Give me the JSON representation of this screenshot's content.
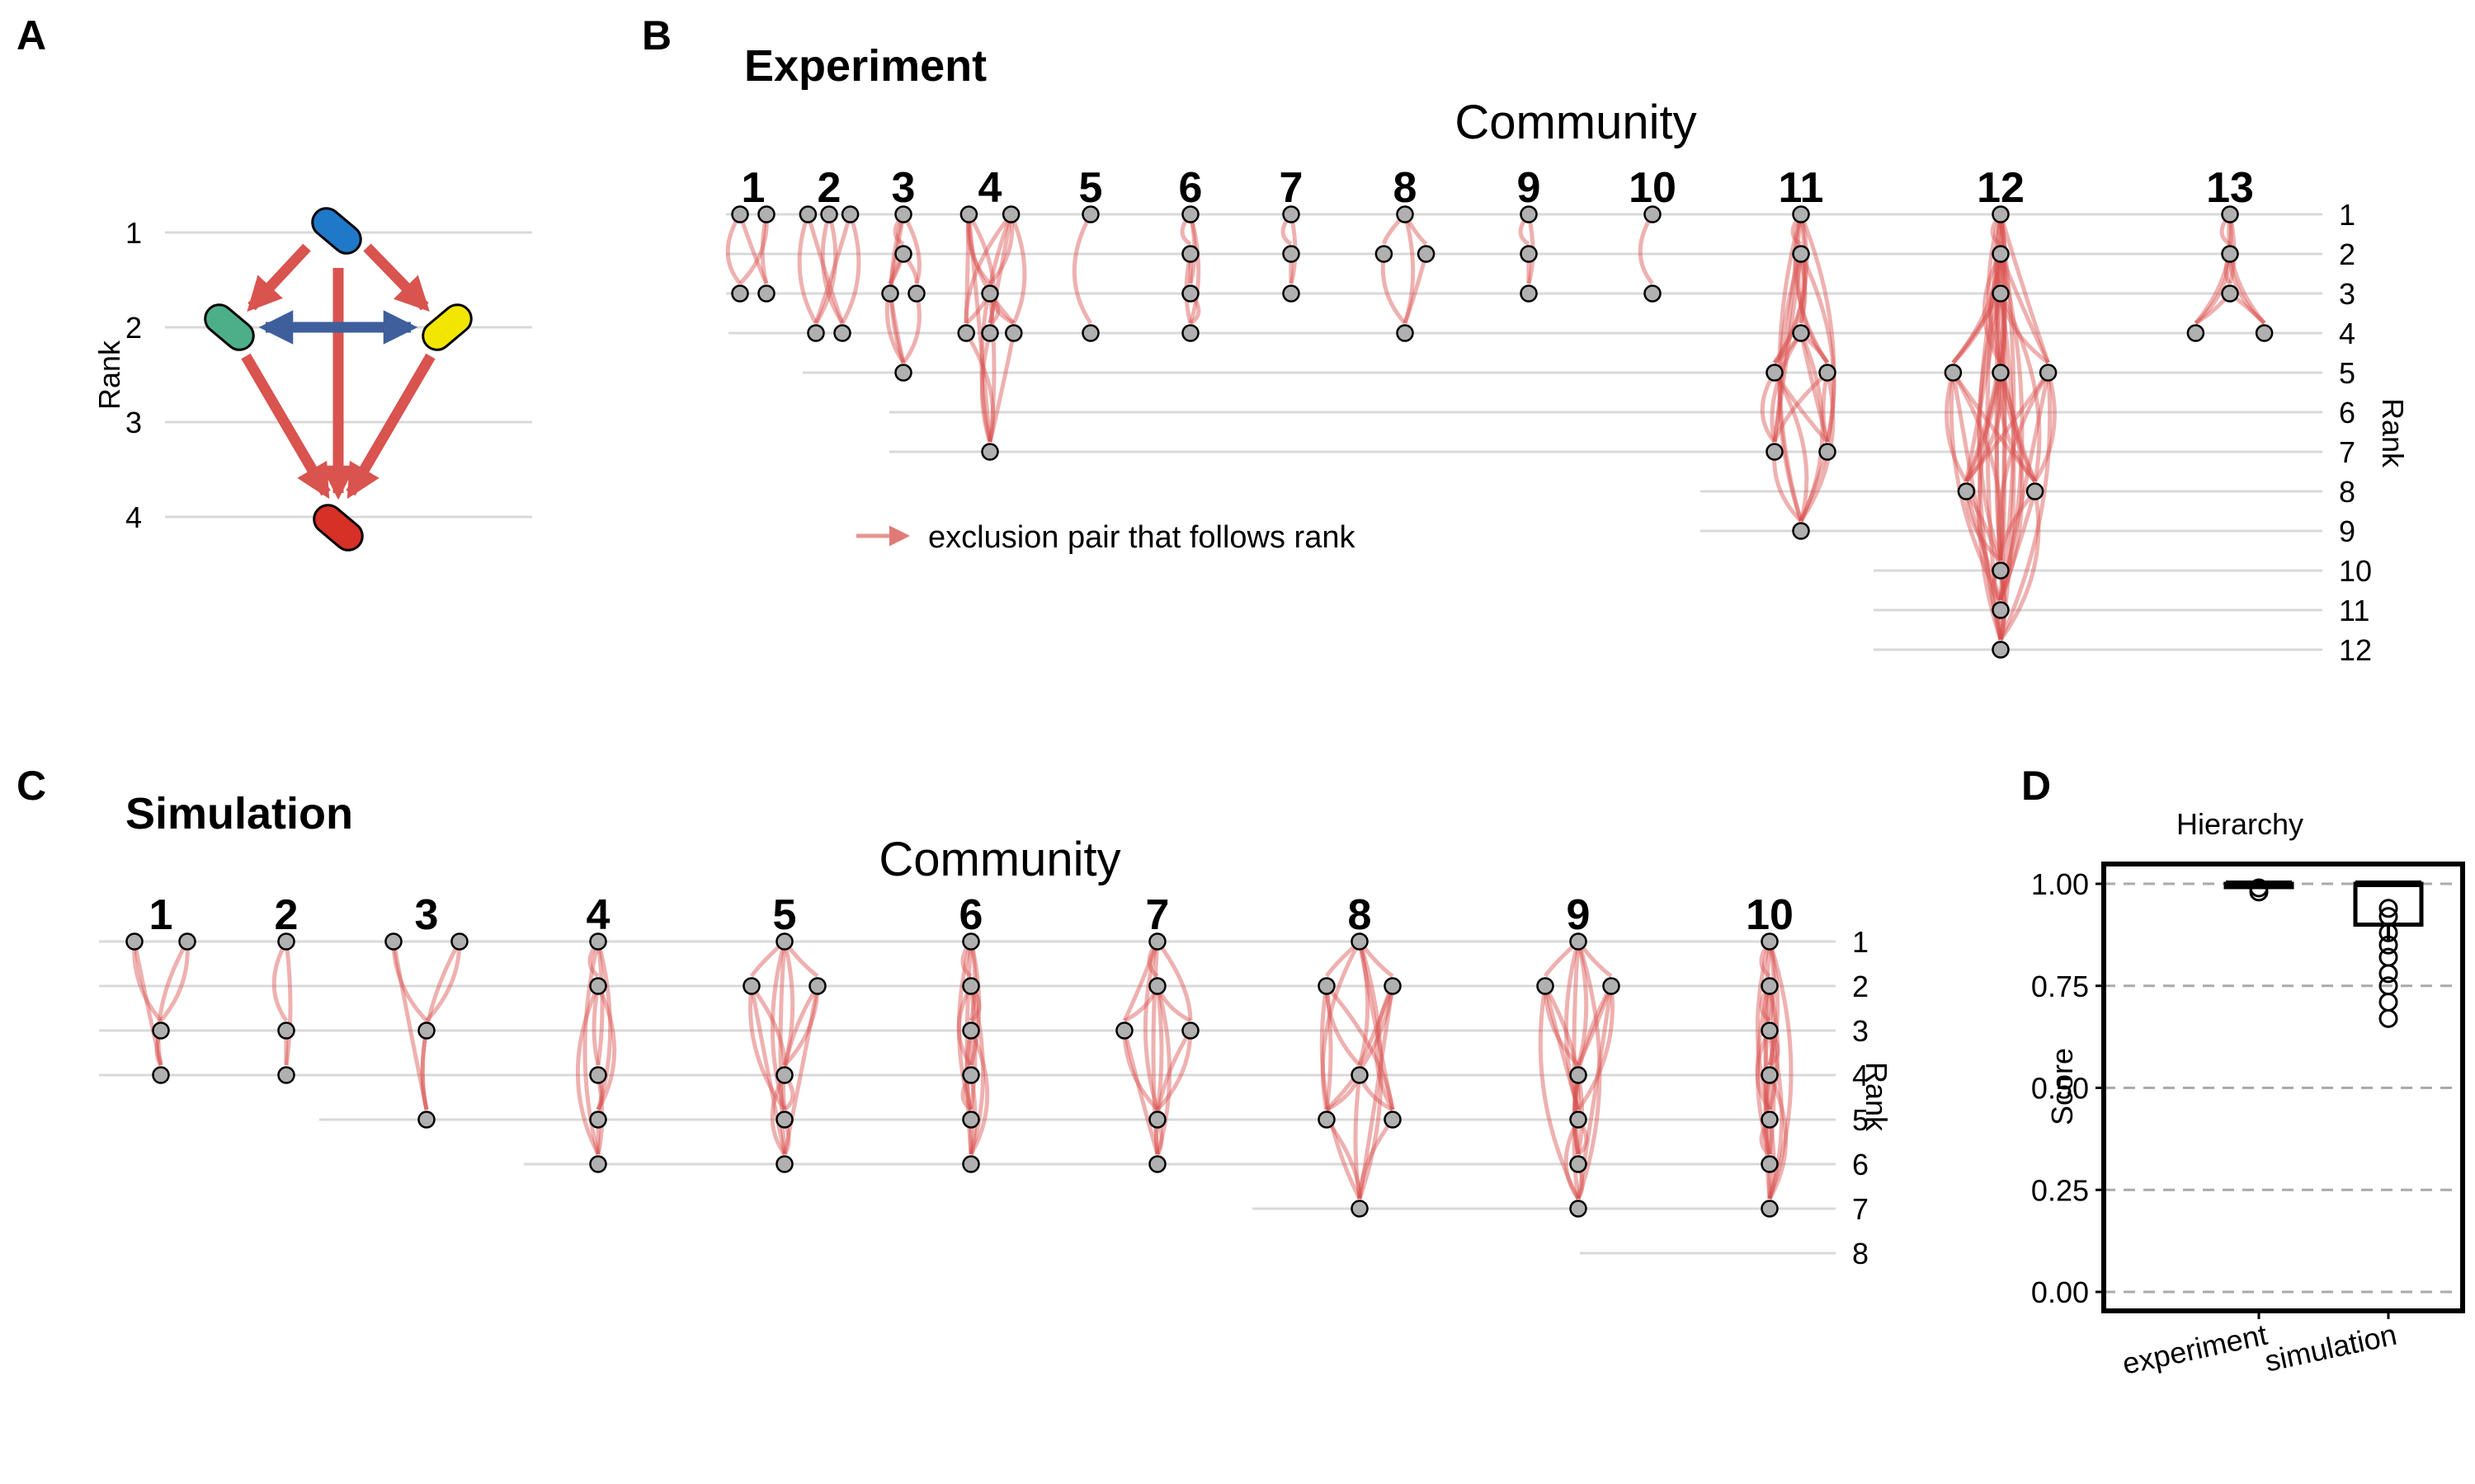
{
  "panels": {
    "A": {
      "label": "A",
      "ylabel": "Rank",
      "rank_ticks": [
        "1",
        "2",
        "3",
        "4"
      ]
    },
    "B": {
      "label": "B",
      "title": "Experiment",
      "subtitle": "Community",
      "axis_label": "Rank",
      "legend": "exclusion pair that follows rank"
    },
    "C": {
      "label": "C",
      "title": "Simulation",
      "subtitle": "Community",
      "axis_label": "Rank"
    },
    "D": {
      "label": "D",
      "title": "Hierarchy",
      "ylabel": "Score"
    }
  },
  "colors": {
    "follows_rank": "#d9534f",
    "violates_rank": "#9dc183",
    "mutual": "#3e5f9c",
    "node": "#b0b0b0",
    "grid": "#d9d9d9",
    "species_colors": [
      "#1f78c8",
      "#4daf8a",
      "#f2e600",
      "#d73027"
    ]
  },
  "chart_data": [
    {
      "type": "network",
      "panel": "A",
      "nodes": [
        {
          "rank": 1,
          "color": "#1f78c8"
        },
        {
          "rank": 2,
          "color": "#4daf8a"
        },
        {
          "rank": 2,
          "color": "#f2e600"
        },
        {
          "rank": 4,
          "color": "#d73027"
        }
      ],
      "edges": [
        [
          0,
          1
        ],
        [
          0,
          2
        ],
        [
          0,
          3
        ],
        [
          1,
          3
        ],
        [
          2,
          3
        ]
      ],
      "mutual_edges": [
        [
          1,
          2
        ]
      ]
    },
    {
      "type": "network",
      "panel": "B",
      "title": "Experiment",
      "ranks": [
        "1",
        "2",
        "3",
        "4",
        "5",
        "6",
        "7",
        "8",
        "9",
        "10",
        "11",
        "12"
      ],
      "communities": [
        {
          "label": "1",
          "max_rank": 3,
          "nodes": [
            {
              "rank": 1,
              "dx": -0.5
            },
            {
              "rank": 1,
              "dx": 0.5
            },
            {
              "rank": 3,
              "dx": -0.5
            },
            {
              "rank": 3,
              "dx": 0.5
            }
          ]
        },
        {
          "label": "2",
          "max_rank": 4,
          "nodes": [
            {
              "rank": 1,
              "dx": -0.8
            },
            {
              "rank": 1,
              "dx": 0
            },
            {
              "rank": 1,
              "dx": 0.8
            },
            {
              "rank": 4,
              "dx": -0.5
            },
            {
              "rank": 4,
              "dx": 0.5
            }
          ]
        },
        {
          "label": "3",
          "max_rank": 5,
          "nodes": [
            {
              "rank": 1,
              "dx": 0
            },
            {
              "rank": 2,
              "dx": 0
            },
            {
              "rank": 3,
              "dx": -0.5
            },
            {
              "rank": 3,
              "dx": 0.5
            },
            {
              "rank": 5,
              "dx": 0
            }
          ]
        },
        {
          "label": "4",
          "max_rank": 7,
          "nodes": [
            {
              "rank": 1,
              "dx": -0.8
            },
            {
              "rank": 1,
              "dx": 0.8
            },
            {
              "rank": 3,
              "dx": 0
            },
            {
              "rank": 4,
              "dx": -0.9
            },
            {
              "rank": 4,
              "dx": 0
            },
            {
              "rank": 4,
              "dx": 0.9
            },
            {
              "rank": 7,
              "dx": 0
            }
          ]
        },
        {
          "label": "5",
          "max_rank": 4,
          "nodes": [
            {
              "rank": 1,
              "dx": 0
            },
            {
              "rank": 4,
              "dx": 0
            }
          ]
        },
        {
          "label": "6",
          "max_rank": 4,
          "nodes": [
            {
              "rank": 1,
              "dx": 0
            },
            {
              "rank": 2,
              "dx": 0
            },
            {
              "rank": 3,
              "dx": 0
            },
            {
              "rank": 4,
              "dx": 0
            }
          ]
        },
        {
          "label": "7",
          "max_rank": 3,
          "nodes": [
            {
              "rank": 1,
              "dx": 0
            },
            {
              "rank": 2,
              "dx": 0
            },
            {
              "rank": 3,
              "dx": 0
            }
          ]
        },
        {
          "label": "8",
          "max_rank": 4,
          "nodes": [
            {
              "rank": 1,
              "dx": 0
            },
            {
              "rank": 2,
              "dx": -0.8
            },
            {
              "rank": 2,
              "dx": 0.8
            },
            {
              "rank": 4,
              "dx": 0
            }
          ]
        },
        {
          "label": "9",
          "max_rank": 3,
          "nodes": [
            {
              "rank": 1,
              "dx": 0
            },
            {
              "rank": 2,
              "dx": 0
            },
            {
              "rank": 3,
              "dx": 0
            }
          ]
        },
        {
          "label": "10",
          "max_rank": 3,
          "nodes": [
            {
              "rank": 1,
              "dx": 0
            },
            {
              "rank": 3,
              "dx": 0
            }
          ]
        },
        {
          "label": "11",
          "max_rank": 9,
          "nodes": [
            {
              "rank": 1,
              "dx": 0
            },
            {
              "rank": 2,
              "dx": 0
            },
            {
              "rank": 4,
              "dx": 0
            },
            {
              "rank": 5,
              "dx": -1
            },
            {
              "rank": 5,
              "dx": 1
            },
            {
              "rank": 7,
              "dx": -1
            },
            {
              "rank": 7,
              "dx": 1
            },
            {
              "rank": 9,
              "dx": 0
            }
          ]
        },
        {
          "label": "12",
          "max_rank": 12,
          "nodes": [
            {
              "rank": 1,
              "dx": 0
            },
            {
              "rank": 2,
              "dx": 0
            },
            {
              "rank": 3,
              "dx": 0
            },
            {
              "rank": 5,
              "dx": -1.8
            },
            {
              "rank": 5,
              "dx": 0
            },
            {
              "rank": 5,
              "dx": 1.8
            },
            {
              "rank": 8,
              "dx": -1.3
            },
            {
              "rank": 8,
              "dx": 1.3
            },
            {
              "rank": 10,
              "dx": 0
            },
            {
              "rank": 11,
              "dx": 0
            },
            {
              "rank": 12,
              "dx": 0
            }
          ]
        },
        {
          "label": "13",
          "max_rank": 4,
          "nodes": [
            {
              "rank": 1,
              "dx": 0
            },
            {
              "rank": 2,
              "dx": 0
            },
            {
              "rank": 3,
              "dx": 0
            },
            {
              "rank": 4,
              "dx": -1.3
            },
            {
              "rank": 4,
              "dx": 1.3
            }
          ]
        }
      ]
    },
    {
      "type": "network",
      "panel": "C",
      "title": "Simulation",
      "ranks": [
        "1",
        "2",
        "3",
        "4",
        "5",
        "6",
        "7",
        "8"
      ],
      "communities": [
        {
          "label": "1",
          "max_rank": 4,
          "nodes": [
            {
              "rank": 1,
              "dx": -0.8
            },
            {
              "rank": 1,
              "dx": 0.8
            },
            {
              "rank": 3,
              "dx": 0
            },
            {
              "rank": 4,
              "dx": 0
            }
          ]
        },
        {
          "label": "2",
          "max_rank": 4,
          "nodes": [
            {
              "rank": 1,
              "dx": 0
            },
            {
              "rank": 3,
              "dx": 0
            },
            {
              "rank": 4,
              "dx": 0
            }
          ]
        },
        {
          "label": "3",
          "max_rank": 5,
          "nodes": [
            {
              "rank": 1,
              "dx": -1
            },
            {
              "rank": 1,
              "dx": 1
            },
            {
              "rank": 3,
              "dx": 0
            },
            {
              "rank": 5,
              "dx": 0
            }
          ]
        },
        {
          "label": "4",
          "max_rank": 6,
          "nodes": [
            {
              "rank": 1,
              "dx": 0
            },
            {
              "rank": 2,
              "dx": 0
            },
            {
              "rank": 4,
              "dx": 0
            },
            {
              "rank": 5,
              "dx": 0
            },
            {
              "rank": 6,
              "dx": 0
            }
          ]
        },
        {
          "label": "5",
          "max_rank": 6,
          "nodes": [
            {
              "rank": 1,
              "dx": 0
            },
            {
              "rank": 2,
              "dx": -1
            },
            {
              "rank": 2,
              "dx": 1
            },
            {
              "rank": 4,
              "dx": 0
            },
            {
              "rank": 5,
              "dx": 0
            },
            {
              "rank": 6,
              "dx": 0
            }
          ]
        },
        {
          "label": "6",
          "max_rank": 6,
          "nodes": [
            {
              "rank": 1,
              "dx": 0
            },
            {
              "rank": 2,
              "dx": 0
            },
            {
              "rank": 3,
              "dx": 0
            },
            {
              "rank": 4,
              "dx": 0
            },
            {
              "rank": 5,
              "dx": 0
            },
            {
              "rank": 6,
              "dx": 0
            }
          ]
        },
        {
          "label": "7",
          "max_rank": 6,
          "nodes": [
            {
              "rank": 1,
              "dx": 0
            },
            {
              "rank": 2,
              "dx": 0
            },
            {
              "rank": 3,
              "dx": -1
            },
            {
              "rank": 3,
              "dx": 1
            },
            {
              "rank": 5,
              "dx": 0
            },
            {
              "rank": 6,
              "dx": 0
            }
          ]
        },
        {
          "label": "8",
          "max_rank": 7,
          "nodes": [
            {
              "rank": 1,
              "dx": 0
            },
            {
              "rank": 2,
              "dx": -1
            },
            {
              "rank": 2,
              "dx": 1
            },
            {
              "rank": 4,
              "dx": 0
            },
            {
              "rank": 5,
              "dx": -1
            },
            {
              "rank": 5,
              "dx": 1
            },
            {
              "rank": 7,
              "dx": 0
            }
          ]
        },
        {
          "label": "9",
          "max_rank": 7,
          "nodes": [
            {
              "rank": 1,
              "dx": 0
            },
            {
              "rank": 2,
              "dx": -1
            },
            {
              "rank": 2,
              "dx": 1
            },
            {
              "rank": 4,
              "dx": 0
            },
            {
              "rank": 5,
              "dx": 0
            },
            {
              "rank": 6,
              "dx": 0
            },
            {
              "rank": 7,
              "dx": 0
            }
          ]
        },
        {
          "label": "10",
          "max_rank": 7,
          "nodes": [
            {
              "rank": 1,
              "dx": 0
            },
            {
              "rank": 2,
              "dx": 0
            },
            {
              "rank": 3,
              "dx": 0
            },
            {
              "rank": 4,
              "dx": 0
            },
            {
              "rank": 5,
              "dx": 0
            },
            {
              "rank": 6,
              "dx": 0
            },
            {
              "rank": 7,
              "dx": 0
            }
          ]
        }
      ]
    },
    {
      "type": "boxplot",
      "panel": "D",
      "title": "Hierarchy",
      "ylabel": "Score",
      "ylim": [
        0,
        1
      ],
      "yticks": [
        "0.00",
        "0.25",
        "0.50",
        "0.75",
        "1.00"
      ],
      "categories": [
        "experiment",
        "simulation"
      ],
      "boxes": [
        {
          "name": "experiment",
          "q1": 1.0,
          "median": 1.0,
          "q3": 1.0,
          "whisker_low": 1.0,
          "whisker_high": 1.0,
          "outliers": [
            0.98,
            0.99
          ]
        },
        {
          "name": "simulation",
          "q1": 0.9,
          "median": 1.0,
          "q3": 1.0,
          "whisker_low": 0.86,
          "whisker_high": 1.0,
          "outliers": [
            0.67,
            0.71,
            0.75,
            0.78,
            0.82,
            0.85,
            0.88,
            0.92,
            0.94
          ]
        }
      ],
      "grid": true
    }
  ]
}
